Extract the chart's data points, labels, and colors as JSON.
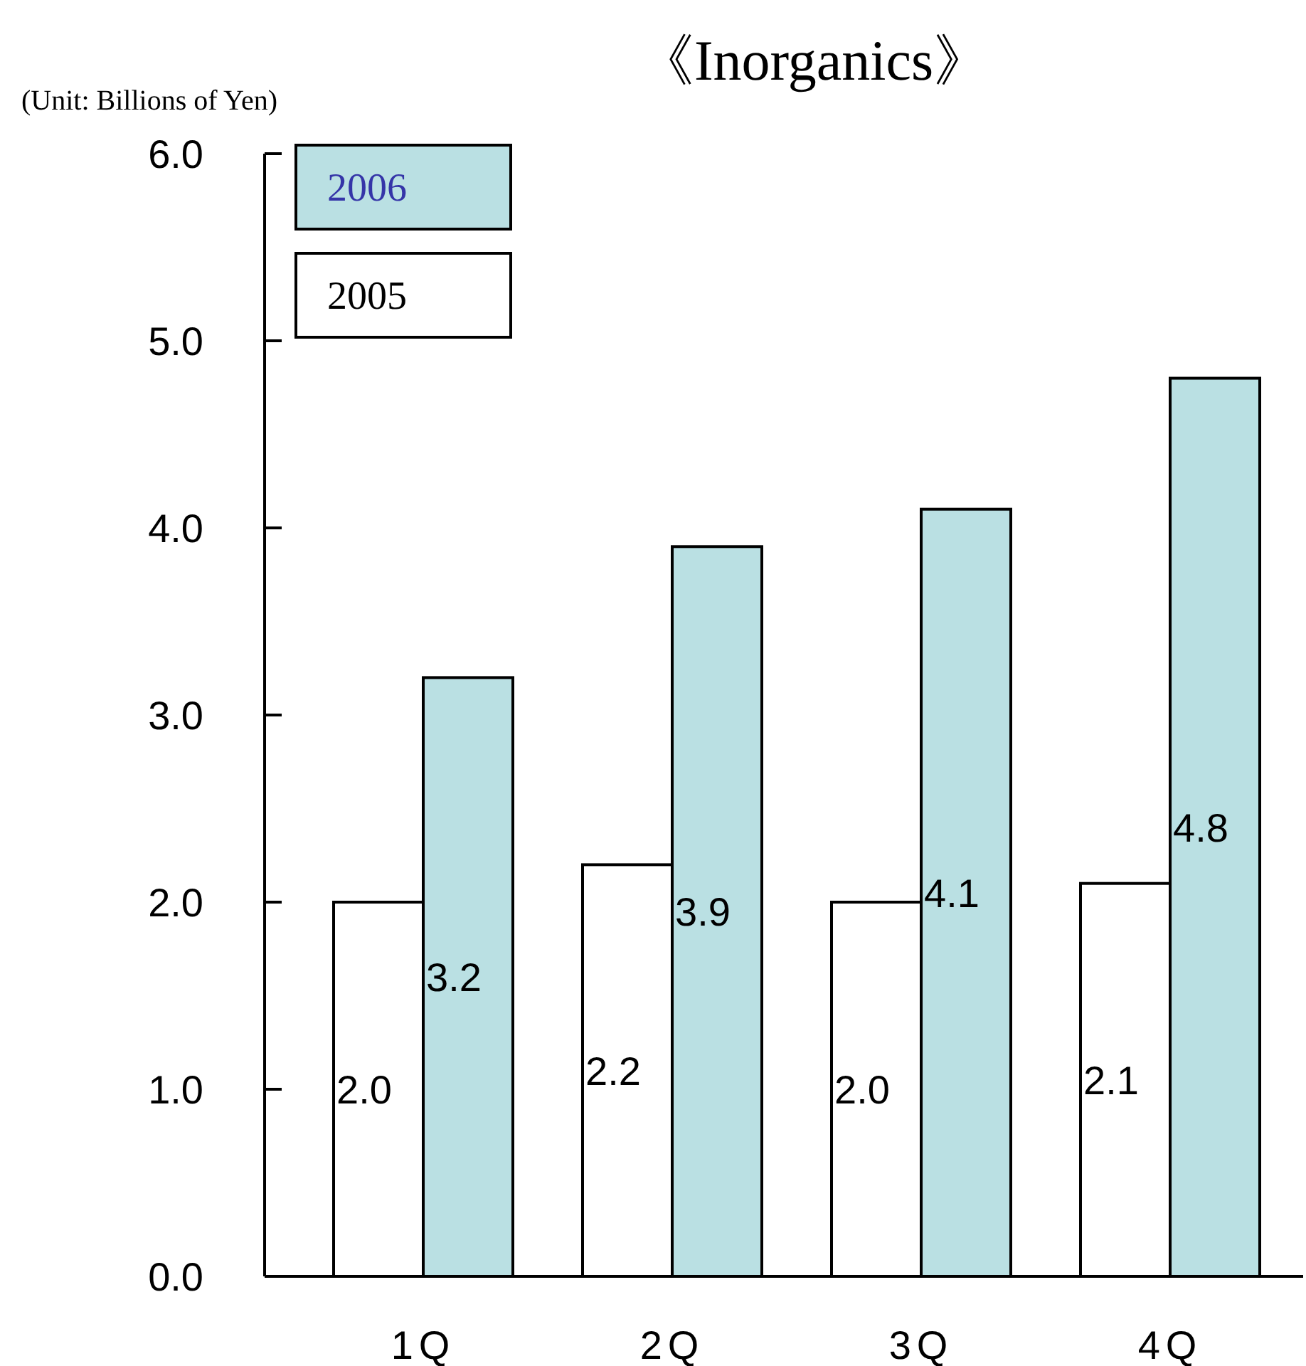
{
  "chart_data": {
    "type": "bar",
    "title": "《Inorganics》",
    "annotations": [
      "(Unit: Billions of Yen)"
    ],
    "categories": [
      "1Q",
      "2Q",
      "3Q",
      "4Q"
    ],
    "series": [
      {
        "name": "2005",
        "color": "#ffffff",
        "values": [
          2.0,
          2.2,
          2.0,
          2.1
        ],
        "value_labels": [
          "2.0",
          "2.2",
          "2.0",
          "2.1"
        ]
      },
      {
        "name": "2006",
        "color": "#bae0e3",
        "values": [
          3.2,
          3.9,
          4.1,
          4.8
        ],
        "value_labels": [
          "3.2",
          "3.9",
          "4.1",
          "4.8"
        ]
      }
    ],
    "ylim": [
      0,
      6
    ],
    "yticks": [
      {
        "value": 0,
        "label": "0.0"
      },
      {
        "value": 1,
        "label": "1.0"
      },
      {
        "value": 2,
        "label": "2.0"
      },
      {
        "value": 3,
        "label": "3.0"
      },
      {
        "value": 4,
        "label": "4.0"
      },
      {
        "value": 5,
        "label": "5.0"
      },
      {
        "value": 6,
        "label": "6.0"
      }
    ],
    "legend": "top left"
  }
}
